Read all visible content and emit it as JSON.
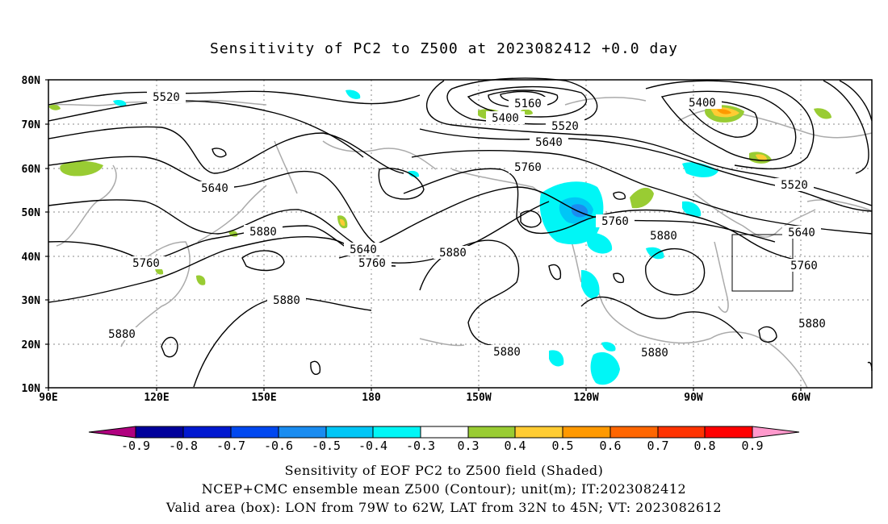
{
  "title": "Sensitivity of PC2 to Z500 at 2023082412 +0.0 day",
  "lat_labels": [
    "80N",
    "70N",
    "60N",
    "50N",
    "40N",
    "30N",
    "20N",
    "10N"
  ],
  "lon_labels": [
    "90E",
    "120E",
    "150E",
    "180",
    "150W",
    "120W",
    "90W",
    "60W"
  ],
  "contour_labels": [
    {
      "text": "5520"
    },
    {
      "text": "5160"
    },
    {
      "text": "5400"
    },
    {
      "text": "5520"
    },
    {
      "text": "5400"
    },
    {
      "text": "5640"
    },
    {
      "text": "5760"
    },
    {
      "text": "5520"
    },
    {
      "text": "5640"
    },
    {
      "text": "5760"
    },
    {
      "text": "5880"
    },
    {
      "text": "5640"
    },
    {
      "text": "5760"
    },
    {
      "text": "5880"
    },
    {
      "text": "5880"
    },
    {
      "text": "5640"
    },
    {
      "text": "5760"
    },
    {
      "text": "5760"
    },
    {
      "text": "5880"
    },
    {
      "text": "5880"
    },
    {
      "text": "5880"
    },
    {
      "text": "5880"
    },
    {
      "text": "5880"
    }
  ],
  "colorbar": {
    "labels": [
      "-0.9",
      "-0.8",
      "-0.7",
      "-0.6",
      "-0.5",
      "-0.4",
      "-0.3",
      "0.3",
      "0.4",
      "0.5",
      "0.6",
      "0.7",
      "0.8",
      "0.9"
    ],
    "colors": [
      "#b0007f",
      "#00009b",
      "#0018d0",
      "#0048f0",
      "#1a8cf0",
      "#00c6f6",
      "#00f6f6",
      "#ffffff",
      "#99cc33",
      "#ffcc33",
      "#ff9900",
      "#ff6600",
      "#ff3300",
      "#ff0000",
      "#ff99cc"
    ]
  },
  "captions": [
    "Sensitivity of EOF PC2 to Z500 field (Shaded)",
    "NCEP+CMC ensemble mean Z500 (Contour); unit(m); IT:2023082412",
    "Valid area (box): LON from 79W to 62W, LAT from 32N to 45N; VT: 2023082612"
  ]
}
